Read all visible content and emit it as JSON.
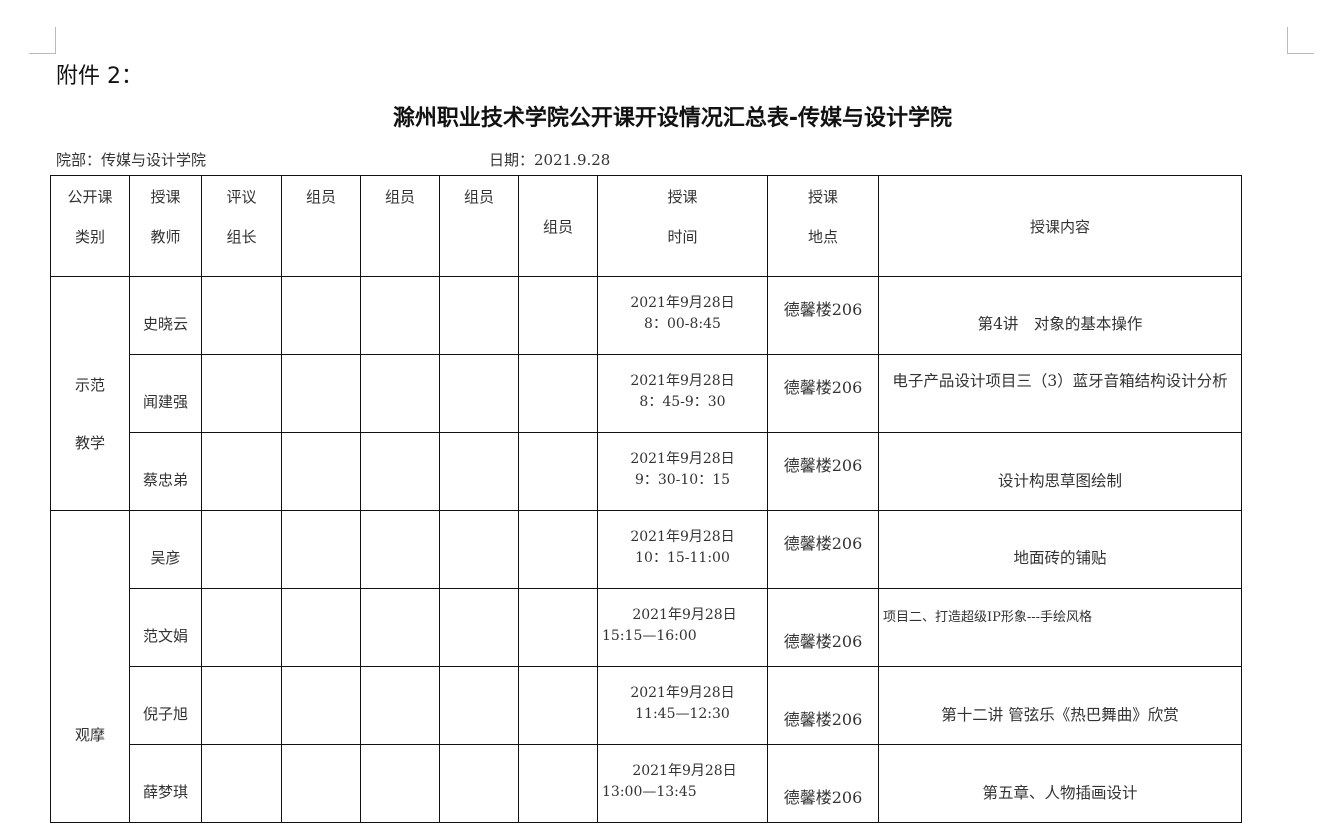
{
  "attachment": "附件 2：",
  "title": "滁州职业技术学院公开课开设情况汇总表-传媒与设计学院",
  "department": "院部：传媒与设计学院",
  "date": "日期：2021.9.28",
  "headers": {
    "category": [
      "公开课",
      "类别"
    ],
    "teacher": [
      "授课",
      "教师"
    ],
    "leader": [
      "评议",
      "组长"
    ],
    "member": "组员",
    "time": [
      "授课",
      "时间"
    ],
    "location": [
      "授课",
      "地点"
    ],
    "content": "授课内容"
  },
  "groups": [
    {
      "category": [
        "示范",
        "教学"
      ]
    },
    {
      "category": [
        "观摩"
      ]
    }
  ],
  "rows": [
    {
      "teacher": "史晓云",
      "date": "2021年9月28日",
      "time": "8：00-8:45",
      "location": "德馨楼206",
      "content": "第4讲　对象的基本操作"
    },
    {
      "teacher": "闻建强",
      "date": "2021年9月28日",
      "time": "8：45-9：30",
      "location": "德馨楼206",
      "content": "电子产品设计项目三（3）蓝牙音箱结构设计分析"
    },
    {
      "teacher": "蔡忠弟",
      "date": "2021年9月28日",
      "time": "9：30-10：15",
      "location": "德馨楼206",
      "content": "设计构思草图绘制"
    },
    {
      "teacher": "吴彦",
      "date": "2021年9月28日",
      "time": "10：15-11:00",
      "location": "德馨楼206",
      "content": "地面砖的铺贴"
    },
    {
      "teacher": "范文娟",
      "date": "2021年9月28日",
      "time": "15:15—16:00",
      "location": "德馨楼206",
      "content": "项目二、打造超级IP形象---手绘风格"
    },
    {
      "teacher": "倪子旭",
      "date": "2021年9月28日",
      "time": "11:45—12:30",
      "location": "德馨楼206",
      "content": "第十二讲 管弦乐《热巴舞曲》欣赏"
    },
    {
      "teacher": "薛梦琪",
      "date": "2021年9月28日",
      "time": "13:00—13:45",
      "location": "德馨楼206",
      "content": "第五章、人物插画设计"
    }
  ]
}
